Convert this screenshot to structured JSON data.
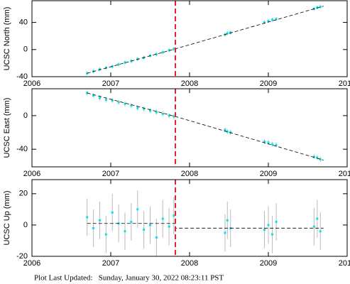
{
  "chart_data": [
    {
      "type": "scatter",
      "ylabel": "UCSC North (mm)",
      "xlim": [
        2006,
        2010
      ],
      "xticks": [
        2006,
        2007,
        2008,
        2009,
        2010
      ],
      "ylim": [
        -40,
        72
      ],
      "yticks": [
        -40,
        0,
        40
      ],
      "color": "#00e5ee",
      "error_color": "#bbbbbb",
      "x": [
        2006.7,
        2006.78,
        2006.86,
        2006.94,
        2007.02,
        2007.1,
        2007.18,
        2007.26,
        2007.34,
        2007.42,
        2007.5,
        2007.58,
        2007.66,
        2007.74,
        2007.8,
        2008.45,
        2008.48,
        2008.52,
        2008.95,
        2009.0,
        2009.05,
        2009.1,
        2009.58,
        2009.62,
        2009.66
      ],
      "values": [
        -35,
        -32,
        -29,
        -27,
        -25,
        -22,
        -19,
        -17,
        -14,
        -12,
        -9,
        -7,
        -4,
        -1,
        1,
        22,
        24,
        25,
        40,
        42,
        44,
        45,
        60,
        62,
        63
      ],
      "errors": [
        3,
        3,
        3,
        3,
        3,
        3,
        3,
        3,
        3,
        3,
        3,
        3,
        3,
        3,
        3,
        3,
        3,
        3,
        3,
        3,
        3,
        3,
        3,
        3,
        3
      ],
      "model": {
        "x": [
          2006.7,
          2007.82,
          2009.7
        ],
        "values": [
          -35,
          1,
          64
        ],
        "color": "#000000"
      },
      "event_x": 2007.82,
      "event_color": "#e8202a"
    },
    {
      "type": "scatter",
      "ylabel": "UCSC East (mm)",
      "xlim": [
        2006,
        2010
      ],
      "xticks": [
        2006,
        2007,
        2008,
        2009,
        2010
      ],
      "ylim": [
        -61,
        32
      ],
      "yticks": [
        -40,
        0
      ],
      "color": "#00e5ee",
      "error_color": "#bbbbbb",
      "x": [
        2006.7,
        2006.78,
        2006.86,
        2006.94,
        2007.02,
        2007.1,
        2007.18,
        2007.26,
        2007.34,
        2007.42,
        2007.5,
        2007.58,
        2007.66,
        2007.74,
        2007.8,
        2008.45,
        2008.48,
        2008.52,
        2008.95,
        2009.0,
        2009.05,
        2009.1,
        2009.58,
        2009.62,
        2009.66
      ],
      "values": [
        27,
        24,
        21,
        19,
        18,
        16,
        14,
        12,
        9,
        8,
        6,
        4,
        2,
        0,
        -1,
        -17,
        -19,
        -20,
        -31,
        -32,
        -34,
        -35,
        -49,
        -50,
        -52
      ],
      "errors": [
        3,
        3,
        3,
        3,
        3,
        3,
        3,
        3,
        3,
        3,
        3,
        3,
        3,
        3,
        3,
        3,
        3,
        3,
        3,
        3,
        3,
        3,
        3,
        3,
        3
      ],
      "model": {
        "x": [
          2006.7,
          2007.82,
          2009.7
        ],
        "values": [
          27,
          -1,
          -53
        ],
        "color": "#000000"
      },
      "event_x": 2007.82,
      "event_color": "#e8202a"
    },
    {
      "type": "scatter",
      "ylabel": "UCSC Up (mm)",
      "xlim": [
        2006,
        2010
      ],
      "xticks": [
        2006,
        2007,
        2008,
        2009,
        2010
      ],
      "ylim": [
        -20,
        29
      ],
      "yticks": [
        -20,
        0,
        20
      ],
      "color": "#00e5ee",
      "error_color": "#bbbbbb",
      "x": [
        2006.7,
        2006.78,
        2006.86,
        2006.94,
        2007.02,
        2007.1,
        2007.18,
        2007.26,
        2007.34,
        2007.42,
        2007.5,
        2007.58,
        2007.66,
        2007.74,
        2007.8,
        2008.45,
        2008.48,
        2008.52,
        2008.95,
        2009.0,
        2009.05,
        2009.1,
        2009.58,
        2009.62,
        2009.66
      ],
      "values": [
        5,
        -2,
        3,
        -6,
        8,
        1,
        -4,
        2,
        10,
        -3,
        0,
        -8,
        4,
        -1,
        6,
        -5,
        3,
        -2,
        -3,
        0,
        -6,
        2,
        -1,
        4,
        -4
      ],
      "errors": [
        12,
        12,
        12,
        12,
        12,
        12,
        12,
        12,
        12,
        12,
        12,
        12,
        12,
        12,
        12,
        12,
        12,
        12,
        12,
        12,
        12,
        12,
        12,
        12,
        12
      ],
      "model": {
        "x": [
          2006.7,
          2007.82,
          2007.82,
          2009.7
        ],
        "values": [
          1,
          1,
          -2,
          -2
        ],
        "color": "#000000"
      },
      "event_x": 2007.82,
      "event_color": "#e8202a"
    }
  ],
  "footer": "Plot Last Updated:   Sunday, January 30, 2022 08:23:11 PST"
}
